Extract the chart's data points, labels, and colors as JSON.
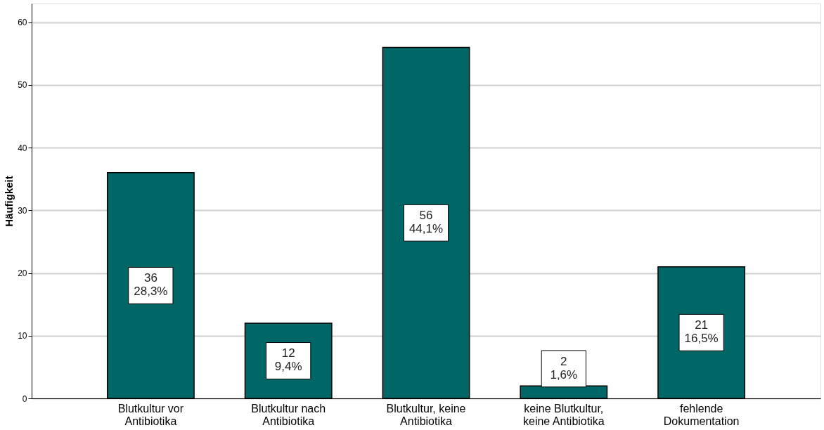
{
  "chart_data": {
    "type": "bar",
    "ylabel": "Häufigkeit",
    "categories": [
      "Blutkultur vor\nAntibiotika",
      "Blutkultur nach\nAntibiotika",
      "Blutkultur, keine\nAntibiotika",
      "keine Blutkultur,\nkeine Antibiotika",
      "fehlende\nDokumentation"
    ],
    "values": [
      36,
      12,
      56,
      2,
      21
    ],
    "value_labels": [
      "36\n28,3%",
      "12\n9,4%",
      "56\n44,1%",
      "2\n1,6%",
      "21\n16,5%"
    ],
    "color": "#006666",
    "ylim": [
      0,
      63
    ],
    "yticks": [
      0,
      10,
      20,
      30,
      40,
      50,
      60
    ],
    "grid": "y"
  }
}
